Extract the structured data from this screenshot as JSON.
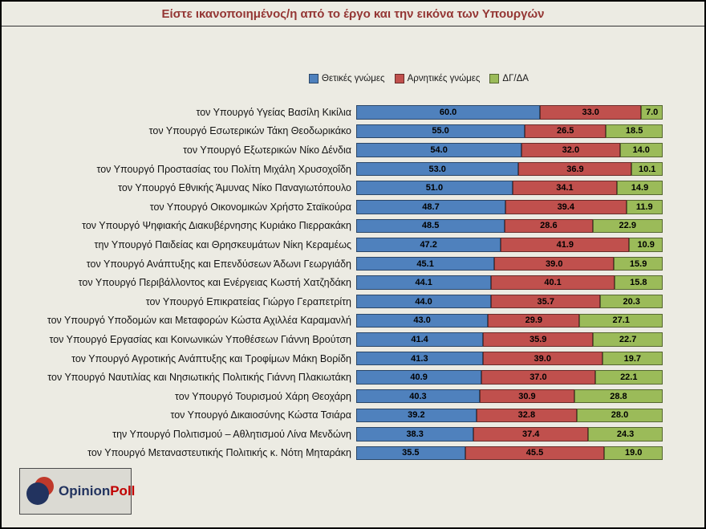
{
  "title": "Είστε ικανοποιημένος/η από το έργο και την εικόνα των Υπουργών",
  "colors": {
    "positive": "#4F81BD",
    "negative": "#C0504D",
    "dont_know": "#9BBB59",
    "title_text": "#943634",
    "background": "#ECEBE3"
  },
  "legend": [
    {
      "label": "Θετικές γνώμες",
      "color": "#4F81BD"
    },
    {
      "label": "Αρνητικές γνώμες",
      "color": "#C0504D"
    },
    {
      "label": "ΔΓ/ΔΑ",
      "color": "#9BBB59"
    }
  ],
  "chart_data": {
    "type": "bar",
    "orientation": "horizontal",
    "stacked": true,
    "title": "Είστε ικανοποιημένος/η από το έργο και την εικόνα των Υπουργών",
    "xlim": [
      0,
      100
    ],
    "grid": false,
    "legend_position": "top",
    "categories": [
      "τον Υπουργό Υγείας Βασίλη Κικίλια",
      "τον Υπουργό Εσωτερικών Τάκη Θεοδωρικάκο",
      "τον Υπουργό Εξωτερικών Νίκο Δένδια",
      "τον Υπουργό Προστασίας του Πολίτη Μιχάλη Χρυσοχοΐδη",
      "τον Υπουργό Εθνικής Άμυνας Νίκο Παναγιωτόπουλο",
      "τον Υπουργό Οικονομικών Χρήστο Σταϊκούρα",
      "τον Υπουργό Ψηφιακής Διακυβέρνησης Κυριάκο Πιερρακάκη",
      "την Υπουργό Παιδείας και Θρησκευμάτων Νίκη Κεραμέως",
      "τον Υπουργό Ανάπτυξης και Επενδύσεων Άδωνι Γεωργιάδη",
      "τον Υπουργό Περιβάλλοντος και Ενέργειας Κωστή Χατζηδάκη",
      "τον Υπουργό Επικρατείας Γιώργο Γεραπετρίτη",
      "τον Υπουργό Υποδομών και Μεταφορών Κώστα Αχιλλέα Καραμανλή",
      "τον Υπουργό Εργασίας και Κοινωνικών Υποθέσεων Γιάννη Βρούτση",
      "τον Υπουργό Αγροτικής Ανάπτυξης και Τροφίμων Μάκη Βορίδη",
      "τον Υπουργό Ναυτιλίας και Νησιωτικής Πολιτικής Γιάννη Πλακιωτάκη",
      "τον Υπουργό Τουρισμού Χάρη Θεοχάρη",
      "τον Υπουργό Δικαιοσύνης Κώστα Τσιάρα",
      "την Υπουργό Πολιτισμού – Αθλητισμού Λίνα Μενδώνη",
      "τον Υπουργό Μεταναστευτικής Πολιτικής κ. Νότη Μηταράκη"
    ],
    "series": [
      {
        "name": "Θετικές γνώμες",
        "color": "#4F81BD",
        "values": [
          60.0,
          55.0,
          54.0,
          53.0,
          51.0,
          48.7,
          48.5,
          47.2,
          45.1,
          44.1,
          44.0,
          43.0,
          41.4,
          41.3,
          40.9,
          40.3,
          39.2,
          38.3,
          35.5
        ]
      },
      {
        "name": "Αρνητικές γνώμες",
        "color": "#C0504D",
        "values": [
          33.0,
          26.5,
          32.0,
          36.9,
          34.1,
          39.4,
          28.6,
          41.9,
          39.0,
          40.1,
          35.7,
          29.9,
          35.9,
          39.0,
          37.0,
          30.9,
          32.8,
          37.4,
          45.5
        ]
      },
      {
        "name": "ΔΓ/ΔΑ",
        "color": "#9BBB59",
        "values": [
          7.0,
          18.5,
          14.0,
          10.1,
          14.9,
          11.9,
          22.9,
          10.9,
          15.9,
          15.8,
          20.3,
          27.1,
          22.7,
          19.7,
          22.1,
          28.8,
          28.0,
          24.3,
          19.0
        ]
      }
    ]
  },
  "logo": {
    "text_primary": "Opinion",
    "text_secondary": "Poll"
  }
}
